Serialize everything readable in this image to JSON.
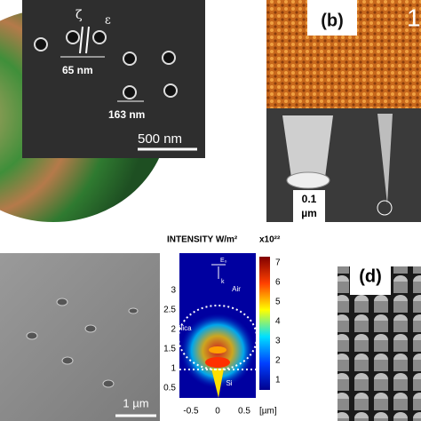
{
  "panel_a": {
    "zeta": "ζ",
    "epsilon": "ε",
    "gap": "65 nm",
    "pitch": "163 nm",
    "scale_bar": "500 nm"
  },
  "panel_b": {
    "label": "(b)",
    "corner_number": "1",
    "tip_scale": [
      "0.1",
      "µm"
    ]
  },
  "panel_c": {
    "scale_bar": "1 µm"
  },
  "intensity_map": {
    "title": "INTENSITY W/m²",
    "multiplier": "x10²²",
    "colorbar_ticks": [
      "7",
      "6",
      "5",
      "4",
      "3",
      "2",
      "1"
    ],
    "y_ticks": [
      "3",
      "2.5",
      "2",
      "1.5",
      "1",
      "0.5"
    ],
    "x_ticks": [
      "-0.5",
      "0",
      "0.5"
    ],
    "x_unit": "[µm]",
    "regions": [
      "Air",
      "Silica",
      "Si"
    ],
    "field": "E₀",
    "wavevector": "k"
  },
  "panel_d": {
    "label": "(d)"
  }
}
